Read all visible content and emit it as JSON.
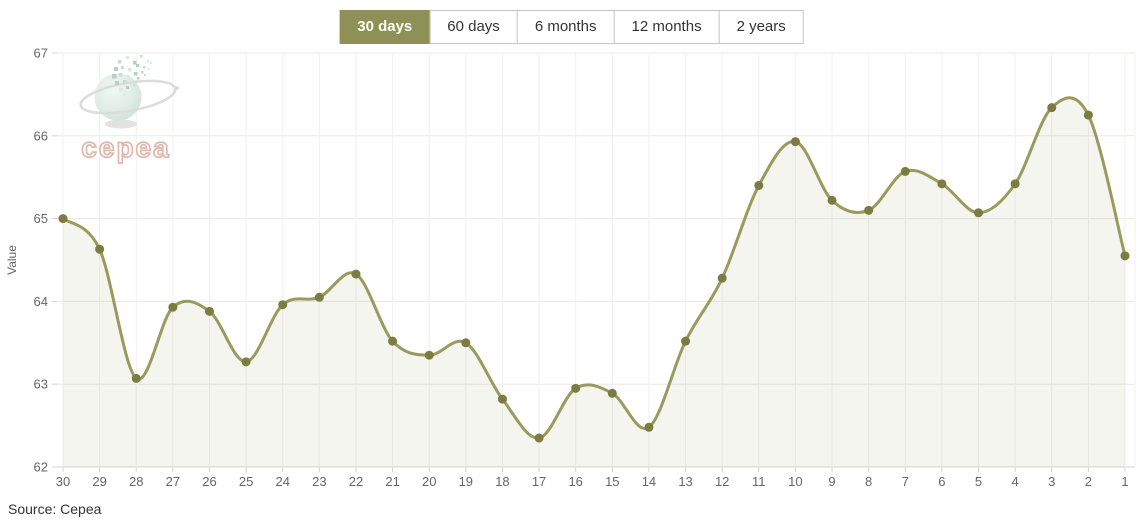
{
  "range_selector": {
    "buttons": [
      {
        "label": "30 days",
        "active": true
      },
      {
        "label": "60 days",
        "active": false
      },
      {
        "label": "6 months",
        "active": false
      },
      {
        "label": "12 months",
        "active": false
      },
      {
        "label": "2 years",
        "active": false
      }
    ]
  },
  "watermark": {
    "brand": "cepea"
  },
  "footer": {
    "source": "Source: Cepea"
  },
  "colors": {
    "accent_olive": "#8f9055",
    "line": "#999a5e",
    "marker": "#7b7c41",
    "area_fill": "rgba(153,154,94,0.10)",
    "grid_horizontal": "#e9e9e7",
    "grid_vertical": "#f0f0ee",
    "axis_line": "#d4d4d2",
    "axis_text": "#666666",
    "logo_globe_light": "#eff7f2",
    "logo_globe_mid": "#dcebe3",
    "logo_globe_dark": "#c5dbd0",
    "logo_text_stroke": "#dcab9f",
    "logo_swoosh": "#d6d6d6"
  },
  "chart_data": {
    "type": "area",
    "title": "",
    "xlabel": "",
    "ylabel": "Value",
    "categories": [
      "30",
      "29",
      "28",
      "27",
      "26",
      "25",
      "24",
      "23",
      "22",
      "21",
      "20",
      "19",
      "18",
      "17",
      "16",
      "15",
      "14",
      "13",
      "12",
      "11",
      "10",
      "9",
      "8",
      "7",
      "6",
      "5",
      "4",
      "3",
      "2",
      "1"
    ],
    "values": [
      65.0,
      64.63,
      63.07,
      63.93,
      63.88,
      63.27,
      63.96,
      64.05,
      64.33,
      63.52,
      63.35,
      63.5,
      62.82,
      62.35,
      62.95,
      62.89,
      62.48,
      63.52,
      64.28,
      65.4,
      65.93,
      65.22,
      65.1,
      65.57,
      65.42,
      65.07,
      65.42,
      66.34,
      66.25,
      64.55
    ],
    "ylim": [
      62,
      67
    ],
    "y_ticks": [
      62,
      63,
      64,
      65,
      66,
      67
    ],
    "grid": true,
    "legend": "none"
  }
}
